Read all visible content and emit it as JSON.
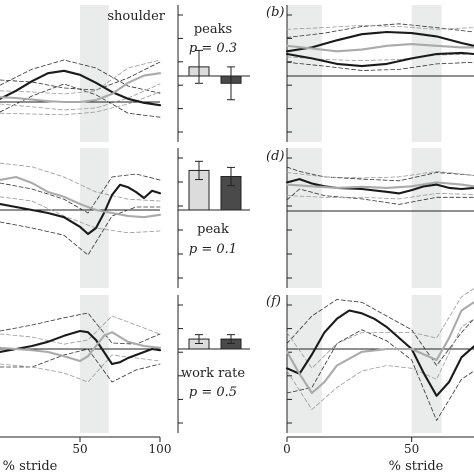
{
  "chart_data": [
    {
      "type": "line",
      "panel": "top-left",
      "title": "shoulder",
      "xlim": [
        0,
        100
      ],
      "shade": [
        50,
        68
      ],
      "series": [
        {
          "role": "mean-dark",
          "x": [
            0,
            10,
            20,
            30,
            40,
            50,
            60,
            70,
            80,
            90,
            100
          ],
          "y": [
            0.08,
            0.28,
            0.52,
            0.72,
            0.78,
            0.68,
            0.48,
            0.25,
            0.08,
            -0.02,
            -0.08
          ]
        },
        {
          "role": "mean-grey",
          "x": [
            0,
            10,
            20,
            30,
            40,
            50,
            60,
            70,
            80,
            90,
            100
          ],
          "y": [
            0.12,
            0.1,
            0.06,
            0.02,
            0.0,
            0.0,
            0.05,
            0.2,
            0.48,
            0.66,
            0.72
          ]
        },
        {
          "role": "sd-dark",
          "x": [
            0,
            20,
            40,
            60,
            80,
            100
          ],
          "y": [
            0.42,
            0.82,
            1.05,
            0.85,
            0.4,
            0.22
          ]
        },
        {
          "role": "sd-dark",
          "x": [
            0,
            20,
            40,
            60,
            80,
            100
          ],
          "y": [
            -0.25,
            0.15,
            0.45,
            0.18,
            -0.28,
            -0.38
          ]
        },
        {
          "role": "sd-dark",
          "x": [
            0,
            20,
            40,
            60,
            80,
            100
          ],
          "y": [
            0.55,
            0.5,
            0.35,
            0.3,
            0.6,
            1.0
          ]
        },
        {
          "role": "sd-grey",
          "x": [
            0,
            20,
            40,
            60,
            80,
            100
          ],
          "y": [
            -0.05,
            -0.12,
            -0.2,
            -0.15,
            0.1,
            0.45
          ]
        },
        {
          "role": "sd-grey",
          "x": [
            0,
            20,
            40,
            60,
            80,
            100
          ],
          "y": [
            0.28,
            0.25,
            0.2,
            0.28,
            0.85,
            1.05
          ]
        },
        {
          "role": "sd-grey",
          "x": [
            0,
            20,
            40,
            60,
            80,
            100
          ],
          "y": [
            -0.28,
            -0.3,
            -0.32,
            -0.25,
            -0.05,
            0.25
          ]
        }
      ]
    },
    {
      "type": "bar",
      "panel": "top-middle",
      "label": "peaks",
      "pvalue": "p = 0.3",
      "categories": [
        "grey",
        "dark"
      ],
      "values": [
        0.1,
        -0.08
      ],
      "errors": [
        0.18,
        0.18
      ],
      "ylim": [
        -0.6,
        0.9
      ]
    },
    {
      "type": "line",
      "panel": "top-right",
      "title": "(b)",
      "xlim": [
        0,
        75
      ],
      "shade": [
        [
          0,
          14
        ],
        [
          50,
          62
        ]
      ],
      "series": [
        {
          "role": "mean-dark",
          "x": [
            0,
            10,
            20,
            30,
            40,
            50,
            60,
            70,
            75
          ],
          "y": [
            0.45,
            0.52,
            0.65,
            0.76,
            0.8,
            0.78,
            0.72,
            0.6,
            0.55
          ]
        },
        {
          "role": "mean-dark",
          "x": [
            0,
            10,
            20,
            30,
            40,
            50,
            60,
            70,
            75
          ],
          "y": [
            0.4,
            0.32,
            0.22,
            0.18,
            0.22,
            0.32,
            0.4,
            0.42,
            0.4
          ]
        },
        {
          "role": "mean-grey",
          "x": [
            0,
            10,
            20,
            30,
            40,
            50,
            60,
            70,
            75
          ],
          "y": [
            0.55,
            0.5,
            0.45,
            0.48,
            0.55,
            0.58,
            0.55,
            0.52,
            0.52
          ]
        },
        {
          "role": "sd-dark",
          "x": [
            0,
            15,
            30,
            45,
            60,
            75
          ],
          "y": [
            0.7,
            0.78,
            0.9,
            0.95,
            0.88,
            0.8
          ]
        },
        {
          "role": "sd-dark",
          "x": [
            0,
            15,
            30,
            45,
            60,
            75
          ],
          "y": [
            0.25,
            0.18,
            0.1,
            0.12,
            0.22,
            0.25
          ]
        },
        {
          "role": "sd-grey",
          "x": [
            0,
            15,
            30,
            45,
            60,
            75
          ],
          "y": [
            0.85,
            0.88,
            0.92,
            0.9,
            0.85,
            0.88
          ]
        },
        {
          "role": "sd-grey",
          "x": [
            0,
            15,
            30,
            45,
            60,
            75
          ],
          "y": [
            0.35,
            0.3,
            0.28,
            0.3,
            0.38,
            0.4
          ]
        }
      ]
    },
    {
      "type": "line",
      "panel": "middle-left",
      "xlim": [
        0,
        100
      ],
      "shade": [
        50,
        68
      ],
      "series": [
        {
          "role": "mean-dark",
          "x": [
            0,
            10,
            20,
            30,
            40,
            50,
            55,
            60,
            65,
            70,
            75,
            80,
            85,
            90,
            95,
            100
          ],
          "y": [
            0.1,
            0.05,
            0.0,
            -0.05,
            -0.12,
            -0.28,
            -0.4,
            -0.3,
            -0.05,
            0.25,
            0.42,
            0.38,
            0.3,
            0.2,
            0.32,
            0.28
          ]
        },
        {
          "role": "mean-grey",
          "x": [
            0,
            10,
            20,
            30,
            40,
            50,
            60,
            70,
            80,
            90,
            100
          ],
          "y": [
            0.5,
            0.55,
            0.45,
            0.3,
            0.22,
            0.1,
            0.0,
            -0.05,
            -0.1,
            -0.12,
            -0.08
          ]
        },
        {
          "role": "sd-dark",
          "x": [
            0,
            20,
            40,
            55,
            70,
            85,
            100
          ],
          "y": [
            0.45,
            0.35,
            0.18,
            -0.05,
            0.55,
            0.6,
            0.5
          ]
        },
        {
          "role": "sd-dark",
          "x": [
            0,
            20,
            40,
            55,
            70,
            85,
            100
          ],
          "y": [
            -0.2,
            -0.3,
            -0.42,
            -0.75,
            -0.1,
            0.05,
            0.05
          ]
        },
        {
          "role": "sd-grey",
          "x": [
            0,
            20,
            40,
            60,
            80,
            100
          ],
          "y": [
            0.78,
            0.72,
            0.55,
            0.3,
            0.18,
            0.15
          ]
        },
        {
          "role": "sd-grey",
          "x": [
            0,
            20,
            40,
            60,
            80,
            100
          ],
          "y": [
            0.22,
            0.15,
            -0.1,
            -0.3,
            -0.38,
            -0.35
          ]
        }
      ]
    },
    {
      "type": "bar",
      "panel": "middle-middle",
      "label": "peak",
      "pvalue": "p = 0.1",
      "categories": [
        "grey",
        "dark"
      ],
      "values": [
        0.65,
        0.55
      ],
      "errors": [
        0.15,
        0.15
      ],
      "ylim": [
        -1.4,
        0.9
      ]
    },
    {
      "type": "line",
      "panel": "middle-right",
      "title": "(d)",
      "xlim": [
        0,
        75
      ],
      "shade": [
        [
          0,
          14
        ],
        [
          50,
          62
        ]
      ],
      "series": [
        {
          "role": "mean-dark",
          "x": [
            0,
            5,
            10,
            15,
            20,
            30,
            40,
            45,
            50,
            55,
            60,
            65,
            70,
            75
          ],
          "y": [
            0.52,
            0.58,
            0.5,
            0.45,
            0.42,
            0.4,
            0.35,
            0.32,
            0.38,
            0.45,
            0.48,
            0.42,
            0.4,
            0.42
          ]
        },
        {
          "role": "mean-grey",
          "x": [
            0,
            10,
            20,
            30,
            40,
            50,
            60,
            70,
            75
          ],
          "y": [
            0.48,
            0.45,
            0.42,
            0.44,
            0.42,
            0.45,
            0.52,
            0.48,
            0.45
          ]
        },
        {
          "role": "sd-dark",
          "x": [
            0,
            5,
            15,
            30,
            45,
            60,
            75
          ],
          "y": [
            0.8,
            0.72,
            0.62,
            0.58,
            0.55,
            0.7,
            0.65
          ]
        },
        {
          "role": "sd-dark",
          "x": [
            0,
            5,
            15,
            30,
            45,
            60,
            75
          ],
          "y": [
            0.2,
            0.4,
            0.28,
            0.22,
            0.12,
            0.25,
            0.25
          ]
        },
        {
          "role": "sd-grey",
          "x": [
            0,
            15,
            30,
            45,
            60,
            75
          ],
          "y": [
            0.7,
            0.62,
            0.6,
            0.62,
            0.72,
            0.65
          ]
        },
        {
          "role": "sd-grey",
          "x": [
            0,
            15,
            30,
            45,
            60,
            75
          ],
          "y": [
            0.28,
            0.25,
            0.25,
            0.22,
            0.32,
            0.3
          ]
        }
      ]
    },
    {
      "type": "line",
      "panel": "bottom-left",
      "xlim": [
        0,
        100
      ],
      "xticks": [
        50,
        100
      ],
      "xlabel": "% stride",
      "shade": [
        50,
        68
      ],
      "series": [
        {
          "role": "mean-dark",
          "x": [
            0,
            10,
            20,
            30,
            40,
            50,
            55,
            60,
            65,
            70,
            75,
            80,
            85,
            90,
            95,
            100
          ],
          "y": [
            -0.05,
            0.0,
            0.05,
            0.12,
            0.22,
            0.3,
            0.28,
            0.15,
            -0.05,
            -0.25,
            -0.22,
            -0.15,
            -0.1,
            -0.05,
            0.0,
            -0.02
          ]
        },
        {
          "role": "mean-grey",
          "x": [
            0,
            10,
            20,
            30,
            40,
            50,
            55,
            60,
            65,
            70,
            75,
            80,
            90,
            100
          ],
          "y": [
            0.02,
            0.0,
            -0.02,
            -0.05,
            -0.12,
            -0.2,
            -0.12,
            0.05,
            0.22,
            0.28,
            0.2,
            0.12,
            0.05,
            0.02
          ]
        },
        {
          "role": "sd-dark",
          "x": [
            0,
            20,
            40,
            55,
            70,
            85,
            100
          ],
          "y": [
            0.3,
            0.4,
            0.52,
            0.6,
            0.1,
            0.08,
            0.25
          ]
        },
        {
          "role": "sd-dark",
          "x": [
            0,
            20,
            40,
            55,
            70,
            85,
            100
          ],
          "y": [
            -0.3,
            -0.3,
            -0.1,
            0.0,
            -0.55,
            -0.35,
            -0.25
          ]
        },
        {
          "role": "sd-grey",
          "x": [
            0,
            20,
            40,
            55,
            70,
            85,
            100
          ],
          "y": [
            0.25,
            0.2,
            0.08,
            0.15,
            0.55,
            0.4,
            0.25
          ]
        },
        {
          "role": "sd-grey",
          "x": [
            0,
            20,
            40,
            55,
            70,
            85,
            100
          ],
          "y": [
            -0.25,
            -0.3,
            -0.4,
            -0.55,
            -0.1,
            -0.15,
            -0.2
          ]
        }
      ]
    },
    {
      "type": "bar",
      "panel": "bottom-middle",
      "label": "work rate",
      "pvalue": "p = 0.5",
      "categories": [
        "grey",
        "dark"
      ],
      "values": [
        0.18,
        0.18
      ],
      "errors": [
        0.08,
        0.08
      ],
      "ylim": [
        -1.5,
        1.0
      ]
    },
    {
      "type": "line",
      "panel": "bottom-right",
      "title": "(f)",
      "xlim": [
        0,
        75
      ],
      "xticks": [
        0,
        50
      ],
      "xlabel": "% stride",
      "shade": [
        [
          0,
          14
        ],
        [
          50,
          62
        ]
      ],
      "series": [
        {
          "role": "mean-dark",
          "x": [
            0,
            5,
            10,
            15,
            20,
            25,
            30,
            35,
            40,
            45,
            50,
            55,
            60,
            65,
            70,
            75
          ],
          "y": [
            -0.35,
            -0.45,
            -0.1,
            0.3,
            0.55,
            0.7,
            0.65,
            0.55,
            0.4,
            0.2,
            0.0,
            -0.45,
            -0.85,
            -0.6,
            -0.15,
            0.05
          ]
        },
        {
          "role": "mean-grey",
          "x": [
            0,
            5,
            10,
            15,
            20,
            30,
            40,
            50,
            55,
            60,
            65,
            70,
            75
          ],
          "y": [
            -0.05,
            -0.45,
            -0.8,
            -0.6,
            -0.3,
            -0.05,
            0.0,
            0.0,
            -0.1,
            -0.2,
            0.2,
            0.7,
            0.85
          ]
        },
        {
          "role": "sd-dark",
          "x": [
            0,
            10,
            20,
            30,
            40,
            50,
            60,
            70,
            75
          ],
          "y": [
            0.1,
            0.6,
            0.9,
            0.85,
            0.6,
            0.35,
            -0.3,
            0.3,
            0.55
          ]
        },
        {
          "role": "sd-dark",
          "x": [
            0,
            10,
            20,
            30,
            40,
            50,
            60,
            70,
            75
          ],
          "y": [
            -0.8,
            -0.7,
            0.1,
            0.35,
            0.15,
            -0.2,
            -1.3,
            -0.55,
            -0.4
          ]
        },
        {
          "role": "sd-grey",
          "x": [
            0,
            10,
            20,
            30,
            40,
            50,
            60,
            70,
            75
          ],
          "y": [
            0.3,
            -0.35,
            0.1,
            0.3,
            0.3,
            0.3,
            0.2,
            0.95,
            1.1
          ]
        },
        {
          "role": "sd-grey",
          "x": [
            0,
            10,
            20,
            30,
            40,
            50,
            60,
            70,
            75
          ],
          "y": [
            -0.4,
            -1.1,
            -0.7,
            -0.4,
            -0.3,
            -0.35,
            -0.55,
            0.4,
            0.55
          ]
        }
      ]
    }
  ]
}
